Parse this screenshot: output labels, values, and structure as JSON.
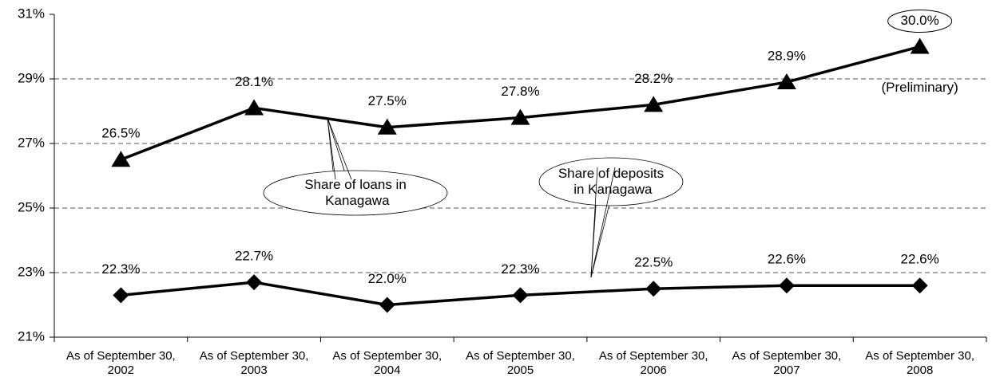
{
  "chart_data": {
    "type": "line",
    "categories": [
      "As of September 30, 2002",
      "As of September 30, 2003",
      "As of September 30, 2004",
      "As of September 30, 2005",
      "As of September 30, 2006",
      "As of September 30, 2007",
      "As of September 30, 2008"
    ],
    "series": [
      {
        "name": "Share of loans in Kanagawa",
        "color": "#000000",
        "marker": "triangle",
        "values": [
          26.5,
          28.1,
          27.5,
          27.8,
          28.2,
          28.9,
          30.0
        ],
        "value_labels": [
          "26.5%",
          "28.1%",
          "27.5%",
          "27.8%",
          "28.2%",
          "28.9%",
          "30.0%"
        ]
      },
      {
        "name": "Share of deposits in Kanagawa",
        "color": "#000000",
        "marker": "diamond",
        "values": [
          22.3,
          22.7,
          22.0,
          22.3,
          22.5,
          22.6,
          22.6
        ],
        "value_labels": [
          "22.3%",
          "22.7%",
          "22.0%",
          "22.3%",
          "22.5%",
          "22.6%",
          "22.6%"
        ]
      }
    ],
    "annotations": [
      "(Preliminary)"
    ],
    "ylim": [
      21,
      31
    ],
    "yticks": [
      {
        "value": 21,
        "label": "21%"
      },
      {
        "value": 23,
        "label": "23%"
      },
      {
        "value": 25,
        "label": "25%"
      },
      {
        "value": 27,
        "label": "27%"
      },
      {
        "value": 29,
        "label": "29%"
      },
      {
        "value": 31,
        "label": "31%"
      }
    ],
    "grid": true
  }
}
